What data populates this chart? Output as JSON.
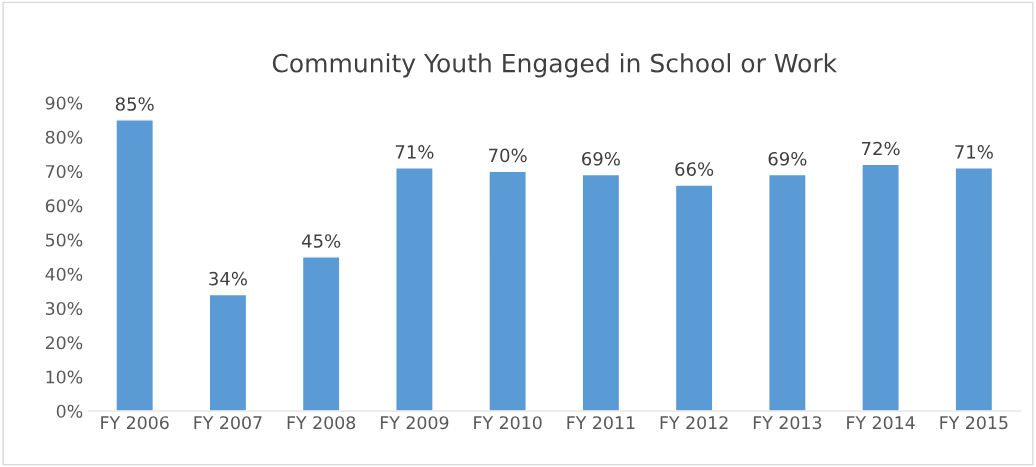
{
  "chart_data": {
    "type": "bar",
    "title": "Community Youth Engaged in School or Work",
    "categories": [
      "FY 2006",
      "FY 2007",
      "FY 2008",
      "FY 2009",
      "FY 2010",
      "FY 2011",
      "FY 2012",
      "FY 2013",
      "FY 2014",
      "FY 2015"
    ],
    "values": [
      85,
      34,
      45,
      71,
      70,
      69,
      66,
      69,
      72,
      71
    ],
    "value_labels": [
      "85%",
      "34%",
      "45%",
      "71%",
      "70%",
      "69%",
      "66%",
      "69%",
      "72%",
      "71%"
    ],
    "color": "#5b9bd5",
    "ylim": [
      0,
      90
    ],
    "yticks": [
      {
        "value": 0,
        "label": "0%"
      },
      {
        "value": 10,
        "label": "10%"
      },
      {
        "value": 20,
        "label": "20%"
      },
      {
        "value": 30,
        "label": "30%"
      },
      {
        "value": 40,
        "label": "40%"
      },
      {
        "value": 50,
        "label": "50%"
      },
      {
        "value": 60,
        "label": "60%"
      },
      {
        "value": 70,
        "label": "70%"
      },
      {
        "value": 80,
        "label": "80%"
      },
      {
        "value": 90,
        "label": "90%"
      }
    ],
    "grid": false,
    "legend": false
  }
}
